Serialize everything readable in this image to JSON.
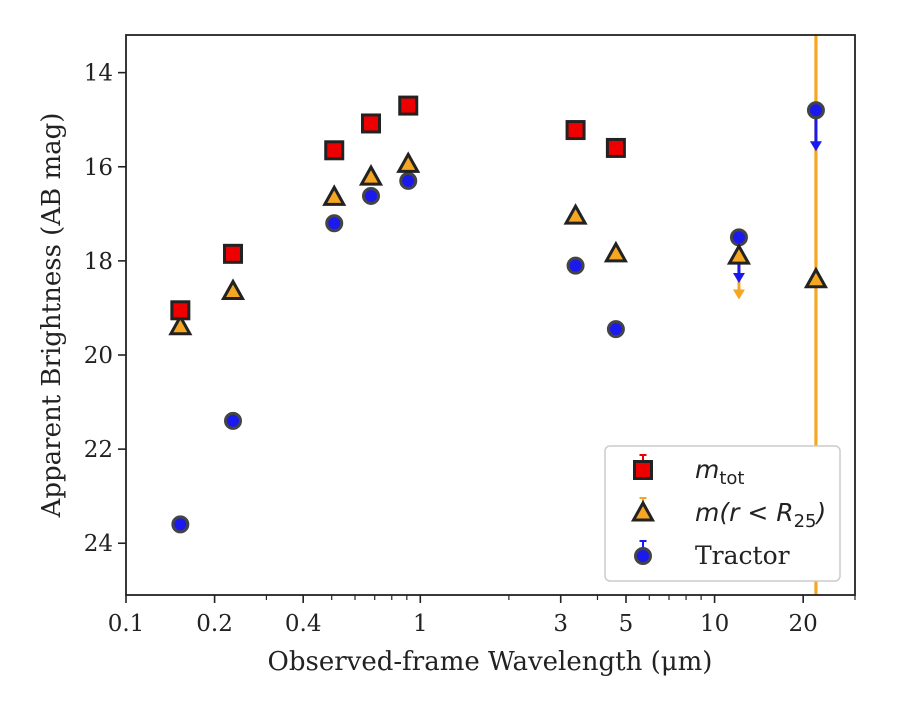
{
  "chart_data": {
    "type": "scatter",
    "title": "",
    "xlabel": "Observed-frame Wavelength (μm)",
    "ylabel": "Apparent Brightness (AB mag)",
    "xscale": "log",
    "xlim": [
      0.1,
      30
    ],
    "ylim": [
      25.1,
      13.2
    ],
    "y_inverted": true,
    "grid": false,
    "legend_position": "bottom-right",
    "x_ticks": [
      {
        "value": 0.1,
        "label": "0.1"
      },
      {
        "value": 0.2,
        "label": "0.2"
      },
      {
        "value": 0.4,
        "label": "0.4"
      },
      {
        "value": 1,
        "label": "1"
      },
      {
        "value": 3,
        "label": "3"
      },
      {
        "value": 5,
        "label": "5"
      },
      {
        "value": 10,
        "label": "10"
      },
      {
        "value": 20,
        "label": "20"
      }
    ],
    "y_ticks": [
      {
        "value": 14,
        "label": "14"
      },
      {
        "value": 16,
        "label": "16"
      },
      {
        "value": 18,
        "label": "18"
      },
      {
        "value": 20,
        "label": "20"
      },
      {
        "value": 22,
        "label": "22"
      },
      {
        "value": 24,
        "label": "24"
      }
    ],
    "vertical_line": {
      "x": 22.1,
      "color": "#f5a623"
    },
    "series": [
      {
        "key": "mtot",
        "name": "m_tot",
        "marker": "square",
        "color": "#ee0000",
        "points": [
          {
            "x": 0.153,
            "y": 19.05
          },
          {
            "x": 0.231,
            "y": 17.85
          },
          {
            "x": 0.51,
            "y": 15.65
          },
          {
            "x": 0.68,
            "y": 15.08
          },
          {
            "x": 0.91,
            "y": 14.7
          },
          {
            "x": 3.37,
            "y": 15.22
          },
          {
            "x": 4.62,
            "y": 15.6
          }
        ]
      },
      {
        "key": "mr25",
        "name": "m(r<R25)",
        "marker": "triangle",
        "color": "#f5a623",
        "points": [
          {
            "x": 0.153,
            "y": 19.4
          },
          {
            "x": 0.231,
            "y": 18.65
          },
          {
            "x": 0.51,
            "y": 16.65
          },
          {
            "x": 0.68,
            "y": 16.22
          },
          {
            "x": 0.91,
            "y": 15.95
          },
          {
            "x": 3.37,
            "y": 17.05
          },
          {
            "x": 4.62,
            "y": 17.85
          },
          {
            "x": 12.1,
            "y": 17.9,
            "upper_limit_to": 18.8
          },
          {
            "x": 22.1,
            "y": 18.4
          }
        ]
      },
      {
        "key": "tractor",
        "name": "Tractor",
        "marker": "circle",
        "color": "#1a1aee",
        "points": [
          {
            "x": 0.153,
            "y": 23.6
          },
          {
            "x": 0.231,
            "y": 21.4
          },
          {
            "x": 0.51,
            "y": 17.2
          },
          {
            "x": 0.68,
            "y": 16.62
          },
          {
            "x": 0.91,
            "y": 16.3
          },
          {
            "x": 3.37,
            "y": 18.1
          },
          {
            "x": 4.62,
            "y": 19.45
          },
          {
            "x": 12.1,
            "y": 17.5,
            "upper_limit_to": 18.45
          },
          {
            "x": 22.1,
            "y": 14.8,
            "upper_limit_to": 15.65
          }
        ]
      }
    ],
    "legend": [
      {
        "series_key": "mtot",
        "label_main": "m",
        "label_sub": "tot",
        "label_rest": ""
      },
      {
        "series_key": "mr25",
        "label_main": "m(r < R",
        "label_sub": "25",
        "label_rest": ")"
      },
      {
        "series_key": "tractor",
        "label_main": "Tractor",
        "label_sub": "",
        "label_rest": ""
      }
    ]
  }
}
